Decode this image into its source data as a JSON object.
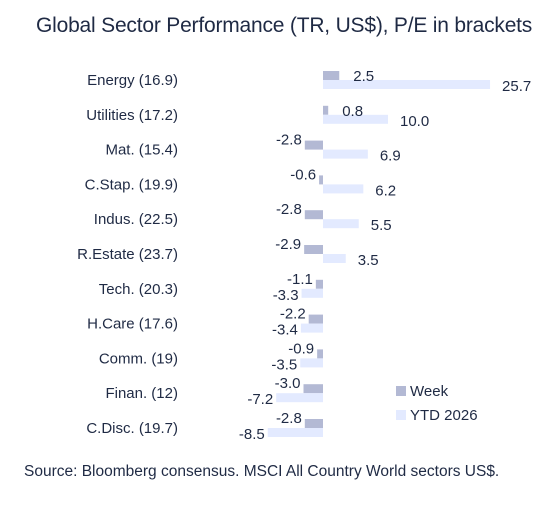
{
  "title": "Global Sector Performance (TR, US$), P/E in brackets",
  "source": "Source: Bloomberg consensus. MSCI All Country World sectors US$.",
  "colors": {
    "week": "#b3b9d4",
    "ytd": "#e3eaff",
    "text": "#1f2a44"
  },
  "chart_data": {
    "type": "bar",
    "orientation": "horizontal",
    "title": "Global Sector Performance (TR, US$), P/E in brackets",
    "categories": [
      "Energy (16.9)",
      "Utilities (17.2)",
      "Mat. (15.4)",
      "C.Stap. (19.9)",
      "Indus. (22.5)",
      "R.Estate (23.7)",
      "Tech. (20.3)",
      "H.Care (17.6)",
      "Comm. (19)",
      "Finan. (12)",
      "C.Disc. (19.7)"
    ],
    "series": [
      {
        "name": "Week",
        "values": [
          2.5,
          0.8,
          -2.8,
          -0.6,
          -2.8,
          -2.9,
          -1.1,
          -2.2,
          -0.9,
          -3.0,
          -2.8
        ]
      },
      {
        "name": "YTD 2026",
        "values": [
          25.7,
          10.0,
          6.9,
          6.2,
          5.5,
          3.5,
          -3.3,
          -3.4,
          -3.5,
          -7.2,
          -8.5
        ]
      }
    ],
    "value_labels": {
      "Week": [
        "2.5",
        "0.8",
        "-2.8",
        "-0.6",
        "-2.8",
        "-2.9",
        "-1.1",
        "-2.2",
        "-0.9",
        "-3.0",
        "-2.8"
      ],
      "YTD 2026": [
        "25.7",
        "10.0",
        "6.9",
        "6.2",
        "5.5",
        "3.5",
        "-3.3",
        "-3.4",
        "-3.5",
        "-7.2",
        "-8.5"
      ]
    },
    "xlim": [
      -10,
      26
    ],
    "grid": false,
    "legend": "bottom-right"
  }
}
